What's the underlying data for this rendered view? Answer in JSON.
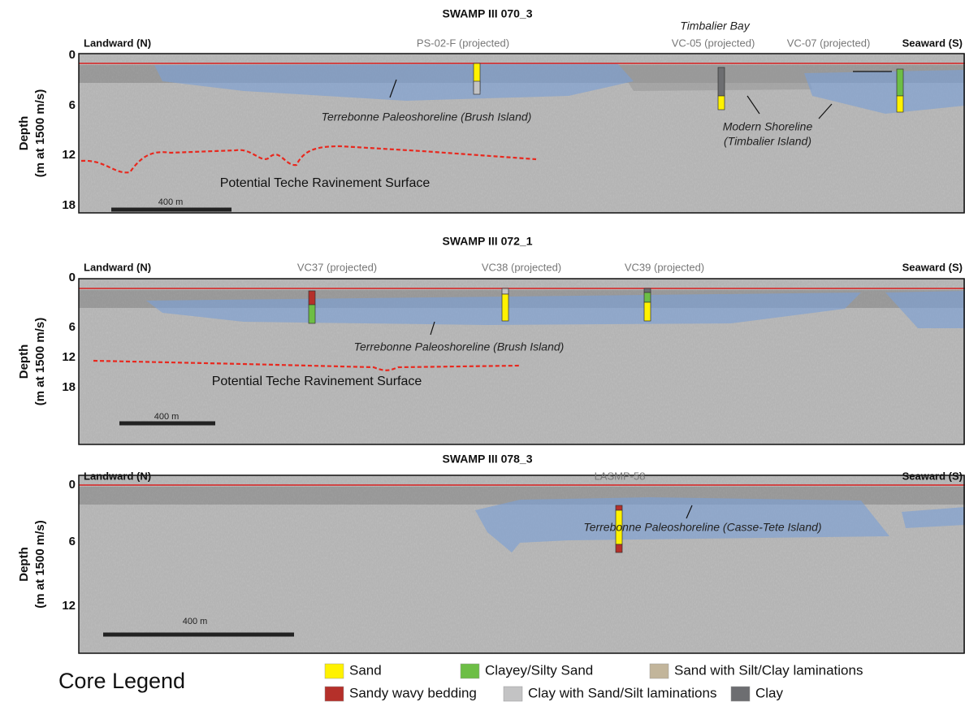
{
  "panels": [
    {
      "title": "SWAMP III 070_3",
      "landward": "Landward (N)",
      "seaward": "Seaward (S)",
      "axis_title": "Depth",
      "axis_subtitle": "(m at 1500 m/s)",
      "ticks": [
        0,
        6,
        12,
        18
      ],
      "location": "Timbalier Bay",
      "core_labels": [
        "PS-02-F (projected)",
        "VC-05 (projected)",
        "VC-07 (projected)"
      ],
      "annotations": [
        "Terrebonne Paleoshoreline (Brush Island)",
        "Modern Shoreline",
        "(Timbalier Island)",
        "Potential Teche Ravinement Surface"
      ],
      "scale_bar": "400 m"
    },
    {
      "title": "SWAMP III 072_1",
      "landward": "Landward (N)",
      "seaward": "Seaward (S)",
      "axis_title": "Depth",
      "axis_subtitle": "(m at 1500 m/s)",
      "ticks": [
        0,
        6,
        12,
        18
      ],
      "core_labels": [
        "VC37 (projected)",
        "VC38 (projected)",
        "VC39 (projected)"
      ],
      "annotations": [
        "Terrebonne Paleoshoreline (Brush Island)",
        "Potential Teche Ravinement Surface"
      ],
      "scale_bar": "400 m"
    },
    {
      "title": "SWAMP III 078_3",
      "landward": "Landward (N)",
      "seaward": "Seaward (S)",
      "axis_title": "Depth",
      "axis_subtitle": "(m at 1500 m/s)",
      "ticks": [
        0,
        6,
        12
      ],
      "core_labels": [
        "LASMP-58"
      ],
      "annotations": [
        "Terrebonne Paleoshoreline (Casse-Tete Island)"
      ],
      "scale_bar": "400 m"
    }
  ],
  "legend": {
    "title": "Core Legend",
    "items": [
      "Sand",
      "Clayey/Silty Sand",
      "Sand with Silt/Clay laminations",
      "Sandy wavy bedding",
      "Clay with Sand/Silt laminations",
      "Clay"
    ]
  }
}
